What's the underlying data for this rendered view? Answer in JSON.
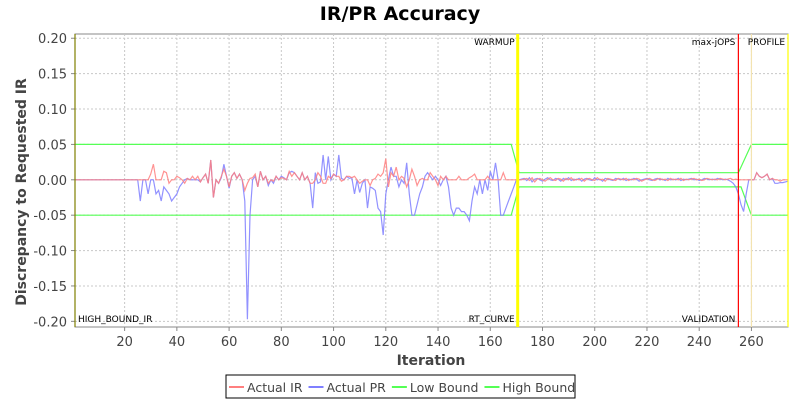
{
  "chart_data": {
    "type": "line",
    "title": "IR/PR Accuracy",
    "xlabel": "Iteration",
    "ylabel": "Discrepancy to Requested IR",
    "xlim": [
      1,
      274
    ],
    "ylim": [
      -0.208,
      0.206
    ],
    "xticks": [
      20,
      40,
      60,
      80,
      100,
      120,
      140,
      160,
      180,
      200,
      220,
      240,
      260
    ],
    "yticks": [
      "0.20",
      "0.15",
      "0.10",
      "0.05",
      "0.00",
      "-0.05",
      "-0.10",
      "-0.15",
      "-0.20"
    ],
    "grid": true,
    "legend_placement": "bottom",
    "x_start": 1,
    "series": [
      {
        "name": "Actual IR",
        "color": "#ff7f7f",
        "values": [
          0,
          0,
          0,
          0,
          0,
          0,
          0,
          0,
          0,
          0,
          0,
          0,
          0,
          0,
          0,
          0,
          0,
          0,
          0,
          0,
          0,
          0,
          0,
          0,
          0,
          0,
          0,
          0,
          0,
          0.008,
          0.022,
          0,
          0,
          0,
          0.012,
          0.01,
          -0.005,
          0,
          0,
          0.005,
          0.003,
          0,
          -0.005,
          0.002,
          0,
          0.005,
          0,
          0.005,
          -0.003,
          0.003,
          0.008,
          -0.005,
          0.028,
          -0.025,
          0,
          -0.005,
          0.005,
          0.015,
          0.005,
          -0.01,
          0.005,
          0.01,
          0.002,
          0.008,
          0,
          -0.015,
          -0.005,
          0.002,
          0.003,
          0.008,
          -0.01,
          0.012,
          0,
          0.005,
          -0.005,
          0,
          -0.002,
          0.005,
          0,
          0.003,
          0.002,
          0,
          0.012,
          0.005,
          0.01,
          0.005,
          0,
          0.01,
          0,
          0.005,
          -0.005,
          -0.005,
          0,
          0.01,
          0.005,
          -0.005,
          -0.005,
          0.005,
          0.002,
          0.008,
          0.005,
          0.005,
          -0.002,
          0,
          0.005,
          0.005,
          0.003,
          0.005,
          0,
          -0.005,
          -0.002,
          0,
          0,
          -0.008,
          0,
          0.002,
          0.008,
          0.005,
          0.01,
          0.03,
          -0.01,
          0.01,
          0.005,
          0.018,
          0,
          0.005,
          0.002,
          -0.01,
          0,
          0.015,
          0.005,
          -0.008,
          0,
          0.002,
          0,
          0,
          0.01,
          0.005,
          0,
          -0.008,
          0.005,
          0,
          0.005,
          0,
          0,
          0,
          0,
          0.005,
          0,
          0,
          0,
          0.003,
          0.005,
          0.008,
          0,
          0,
          0,
          0,
          0.005,
          0,
          0,
          0,
          0,
          0,
          0.01,
          0,
          0,
          0,
          0,
          0,
          0,
          0,
          0.001,
          0.002,
          -0.001,
          0.003,
          -0.003,
          0.001,
          0.002,
          0,
          -0.002,
          0.001,
          0.003,
          0,
          -0.001,
          0.002,
          0.001,
          -0.002,
          0.002,
          0,
          0.003,
          -0.001,
          0.001,
          0,
          0.002,
          -0.002,
          0.001,
          0.002,
          0,
          -0.001,
          0.003,
          0,
          0.001,
          -0.002,
          0.002,
          0.001,
          0,
          -0.001,
          0.002,
          0.001,
          0,
          0.002,
          -0.001,
          0.001,
          0,
          0.002,
          0.001,
          -0.002,
          0,
          0.001,
          0.002,
          0,
          -0.001,
          0.001,
          0.002,
          0,
          0.001,
          -0.001,
          0.002,
          0,
          0.001,
          0,
          0.002,
          -0.001,
          0.001,
          0,
          0.001,
          0.002,
          0,
          0.001,
          -0.001,
          0,
          0.002,
          0.001,
          0,
          0.001,
          0,
          0.002,
          0.001,
          0,
          0.001,
          0.002,
          0,
          0.001,
          0,
          0,
          0,
          0,
          0,
          0,
          0,
          0.01,
          0.005,
          0.003,
          0.005,
          0.008,
          0,
          0.002,
          0,
          0,
          -0.002,
          0,
          0,
          0
        ]
      },
      {
        "name": "Actual PR",
        "color": "#7f7fff",
        "values": [
          0,
          0,
          0,
          0,
          0,
          0,
          0,
          0,
          0,
          0,
          0,
          0,
          0,
          0,
          0,
          0,
          0,
          0,
          0,
          0,
          0,
          0,
          0,
          0,
          0,
          -0.03,
          0,
          0,
          -0.02,
          0,
          0,
          -0.02,
          -0.015,
          -0.03,
          -0.01,
          -0.015,
          -0.02,
          -0.03,
          -0.025,
          -0.02,
          -0.01,
          -0.005,
          0,
          0.002,
          0,
          0,
          0,
          0,
          -0.003,
          0.003,
          0.008,
          -0.005,
          0.028,
          -0.025,
          0,
          -0.005,
          0.003,
          0.022,
          0.005,
          -0.012,
          0.005,
          0.01,
          0.002,
          0.008,
          0,
          -0.03,
          -0.197,
          -0.05,
          0,
          0.005,
          -0.01,
          0.012,
          0,
          0.005,
          -0.008,
          0,
          -0.005,
          0.005,
          0,
          0.005,
          0.003,
          0,
          0.01,
          0.012,
          0.01,
          0.005,
          0,
          0.01,
          0,
          0.005,
          -0.005,
          -0.04,
          0.01,
          -0.005,
          -0.003,
          0.035,
          0,
          0.033,
          0,
          0.008,
          0.005,
          0.035,
          0.002,
          0,
          0.005,
          0.002,
          0.003,
          -0.02,
          0,
          -0.018,
          -0.005,
          0,
          -0.04,
          -0.01,
          -0.012,
          -0.015,
          -0.04,
          -0.045,
          -0.078,
          -0.02,
          0,
          0.018,
          0.005,
          0.005,
          -0.01,
          0,
          -0.005,
          0.024,
          -0.02,
          -0.05,
          -0.05,
          -0.035,
          -0.02,
          -0.01,
          0.005,
          0.01,
          0.005,
          0,
          0.005,
          0,
          -0.008,
          0,
          0.005,
          -0.01,
          -0.04,
          -0.05,
          -0.04,
          -0.04,
          -0.045,
          -0.045,
          -0.05,
          -0.058,
          -0.03,
          -0.01,
          -0.02,
          0,
          -0.02,
          0,
          -0.015,
          0.012,
          0,
          0.024,
          0,
          -0.05,
          -0.05,
          -0.04,
          -0.03,
          -0.02,
          -0.01,
          0,
          0,
          0.001,
          0.002,
          -0.001,
          0.003,
          -0.003,
          0.001,
          0.002,
          0,
          -0.002,
          0.001,
          0.003,
          0,
          -0.001,
          0.002,
          0.001,
          -0.002,
          0.002,
          0,
          0.003,
          -0.001,
          0.001,
          0,
          0.002,
          -0.002,
          0.001,
          0.002,
          0,
          -0.001,
          0.003,
          0,
          0.001,
          -0.002,
          0.002,
          0.001,
          0,
          -0.001,
          0.002,
          0.001,
          0,
          0.002,
          -0.001,
          0.001,
          0,
          0.002,
          0.001,
          -0.002,
          0,
          0.001,
          0.002,
          0,
          -0.001,
          0.001,
          0.002,
          0,
          0.001,
          -0.001,
          0.002,
          0,
          0.001,
          0,
          0.002,
          -0.001,
          0.001,
          0,
          0.001,
          0.002,
          0,
          0.001,
          -0.001,
          0,
          0.002,
          0.001,
          0,
          0.001,
          0,
          0.002,
          0.001,
          0,
          0.001,
          0,
          -0.002,
          -0.005,
          -0.01,
          -0.02,
          -0.035,
          -0.045,
          -0.02,
          0,
          0,
          0,
          0.01,
          0.005,
          0.003,
          0.005,
          0.008,
          0,
          0.002,
          -0.005,
          -0.005,
          -0.004,
          -0.004,
          -0.003,
          -0.002
        ]
      },
      {
        "name": "Low Bound",
        "color": "#55ff55",
        "points": [
          [
            1,
            -0.05
          ],
          [
            168,
            -0.05
          ],
          [
            171,
            -0.01
          ],
          [
            256,
            -0.01
          ],
          [
            260,
            -0.05
          ],
          [
            274,
            -0.05
          ]
        ]
      },
      {
        "name": "High Bound",
        "color": "#55ff55",
        "points": [
          [
            1,
            0.05
          ],
          [
            168,
            0.05
          ],
          [
            171,
            0.01
          ],
          [
            255,
            0.01
          ],
          [
            260,
            0.05
          ],
          [
            274,
            0.05
          ]
        ]
      }
    ],
    "markers": [
      {
        "x": 1,
        "color": "#808000",
        "top_label": "",
        "bottom_label": "HIGH_BOUND_IR",
        "label_side": "right"
      },
      {
        "x": 170.5,
        "color": "#ffff00",
        "top_label": "WARMUP",
        "bottom_label": "RT_CURVE",
        "label_side": "left",
        "thick": true
      },
      {
        "x": 255,
        "color": "#ff0000",
        "top_label": "max-jOPS",
        "bottom_label": "VALIDATION",
        "label_side": "left"
      },
      {
        "x": 260,
        "color": "#f3e3b0",
        "top_label": "",
        "bottom_label": "",
        "label_side": "left"
      },
      {
        "x": 274,
        "color": "#ffff00",
        "top_label": "PROFILE",
        "bottom_label": "",
        "label_side": "left"
      }
    ]
  }
}
